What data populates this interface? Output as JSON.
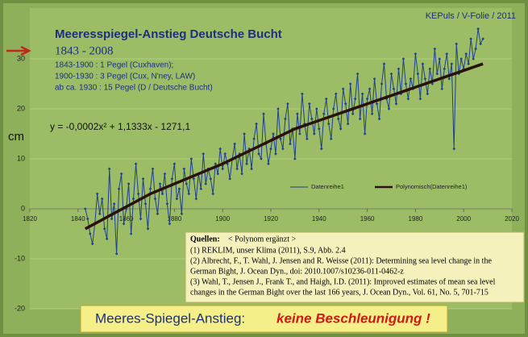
{
  "chart_data": {
    "type": "line",
    "title": "Meeresspiegel-Anstieg Deutsche Bucht",
    "subtitle": "1843 - 2008",
    "notes": [
      "1843-1900 :  1 Pegel (Cuxhaven);",
      "1900-1930 :  3 Pegel (Cux, N'ney, LAW)",
      "ab ca. 1930 : 15 Pegel (D / Deutsche Bucht)"
    ],
    "credit": "KEPuls / V-Folie / 2011",
    "equation": "y = -0,0002x² + 1,1333x - 1271,1",
    "ylabel": "cm",
    "x": [
      1843,
      1844,
      1845,
      1846,
      1847,
      1848,
      1849,
      1850,
      1851,
      1852,
      1853,
      1854,
      1855,
      1856,
      1857,
      1858,
      1859,
      1860,
      1861,
      1862,
      1863,
      1864,
      1865,
      1866,
      1867,
      1868,
      1869,
      1870,
      1871,
      1872,
      1873,
      1874,
      1875,
      1876,
      1877,
      1878,
      1879,
      1880,
      1881,
      1882,
      1883,
      1884,
      1885,
      1886,
      1887,
      1888,
      1889,
      1890,
      1891,
      1892,
      1893,
      1894,
      1895,
      1896,
      1897,
      1898,
      1899,
      1900,
      1901,
      1902,
      1903,
      1904,
      1905,
      1906,
      1907,
      1908,
      1909,
      1910,
      1911,
      1912,
      1913,
      1914,
      1915,
      1916,
      1917,
      1918,
      1919,
      1920,
      1921,
      1922,
      1923,
      1924,
      1925,
      1926,
      1927,
      1928,
      1929,
      1930,
      1931,
      1932,
      1933,
      1934,
      1935,
      1936,
      1937,
      1938,
      1939,
      1940,
      1941,
      1942,
      1943,
      1944,
      1945,
      1946,
      1947,
      1948,
      1949,
      1950,
      1951,
      1952,
      1953,
      1954,
      1955,
      1956,
      1957,
      1958,
      1959,
      1960,
      1961,
      1962,
      1963,
      1964,
      1965,
      1966,
      1967,
      1968,
      1969,
      1970,
      1971,
      1972,
      1973,
      1974,
      1975,
      1976,
      1977,
      1978,
      1979,
      1980,
      1981,
      1982,
      1983,
      1984,
      1985,
      1986,
      1987,
      1988,
      1989,
      1990,
      1991,
      1992,
      1993,
      1994,
      1995,
      1996,
      1997,
      1998,
      1999,
      2000,
      2001,
      2002,
      2003,
      2004,
      2005,
      2006,
      2007,
      2008
    ],
    "series": [
      {
        "name": "Datenreihe1",
        "color": "#1f3f8f",
        "values": [
          0,
          -2,
          -5,
          -7,
          -3,
          3,
          -1,
          2,
          -4,
          -6,
          8,
          -2,
          1,
          -9,
          4,
          7,
          -3,
          0,
          5,
          -5,
          2,
          9,
          3,
          -2,
          6,
          1,
          -4,
          4,
          8,
          2,
          -1,
          5,
          3,
          7,
          1,
          -3,
          6,
          9,
          2,
          4,
          -1,
          8,
          5,
          3,
          10,
          6,
          2,
          7,
          4,
          11,
          5,
          8,
          6,
          3,
          9,
          7,
          12,
          8,
          11,
          9,
          6,
          10,
          13,
          8,
          11,
          7,
          15,
          9,
          12,
          8,
          14,
          17,
          11,
          10,
          19,
          13,
          9,
          12,
          15,
          11,
          20,
          14,
          12,
          18,
          21,
          13,
          16,
          10,
          19,
          15,
          23,
          17,
          14,
          21,
          18,
          15,
          20,
          16,
          12,
          19,
          22,
          17,
          14,
          20,
          23,
          18,
          16,
          24,
          21,
          17,
          25,
          19,
          22,
          27,
          18,
          23,
          15,
          22,
          24,
          19,
          26,
          21,
          18,
          25,
          29,
          22,
          20,
          27,
          24,
          21,
          28,
          23,
          30,
          25,
          22,
          26,
          24,
          31,
          27,
          22,
          29,
          26,
          23,
          28,
          25,
          32,
          27,
          30,
          24,
          28,
          31,
          26,
          29,
          12,
          33,
          27,
          30,
          28,
          31,
          29,
          34,
          30,
          32,
          36,
          33,
          34
        ]
      },
      {
        "name": "Polynomisch(Datenreihe1)",
        "color": "#2a1208",
        "x": [
          1843,
          1870,
          1900,
          1930,
          1960,
          1990,
          2008
        ],
        "values": [
          -4,
          3,
          9,
          16,
          21,
          26,
          29
        ]
      }
    ],
    "xlim": [
      1820,
      2020
    ],
    "xticks": [
      1820,
      1840,
      1860,
      1880,
      1900,
      1920,
      1940,
      1960,
      1980,
      2000,
      2020
    ],
    "ylim": [
      -20,
      40
    ],
    "yticks": [
      -20,
      -10,
      0,
      10,
      20,
      30
    ],
    "sources": {
      "heading": "Quellen:",
      "note": "< Polynom ergänzt >",
      "lines": [
        "(1) REKLIM, unser Klima (2011), S.9, Abb. 2.4",
        "(2) Albrecht, F., T. Wahl, J. Jensen and R. Weisse (2011): Determining sea level change in the",
        "German Bight, J. Ocean Dyn., doi: 2010.1007/s10236-011-0462-z",
        "(3) Wahl, T., Jensen J., Frank T., and Haigh, I.D. (2011): Improved estimates of mean sea level",
        "changes in the German Bight over the last 166 years, J. Ocean Dyn., Vol. 61, No. 5, 701-715"
      ]
    },
    "banner": {
      "text": "Meeres-Spiegel-Anstieg:",
      "emphasis": "keine Beschleunigung !"
    }
  }
}
